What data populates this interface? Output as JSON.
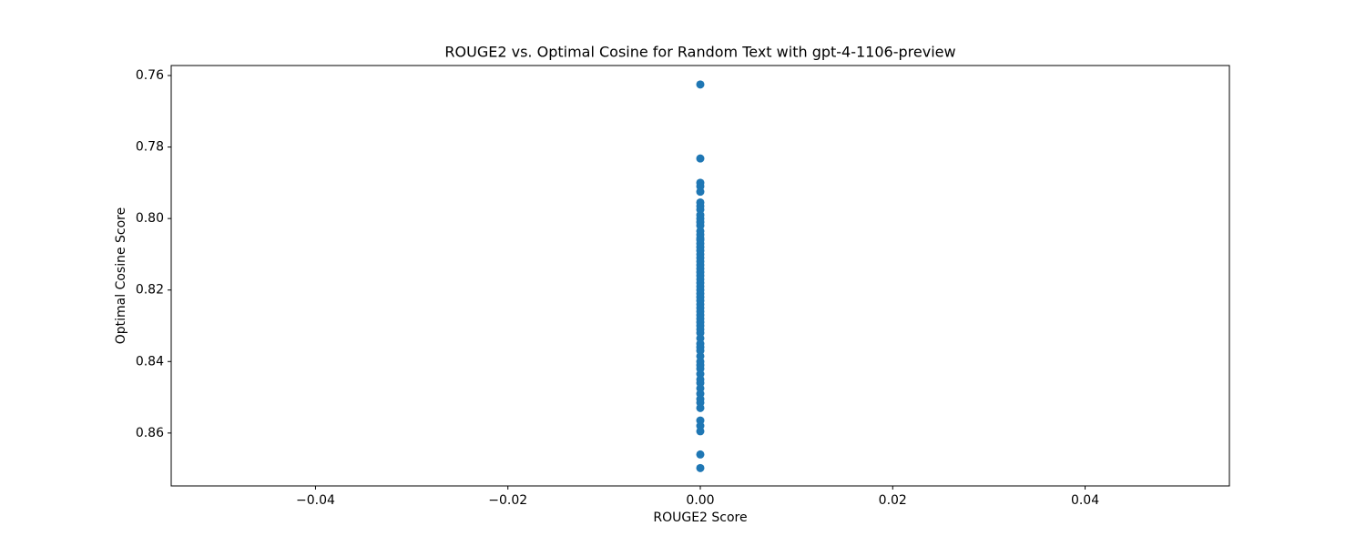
{
  "chart_data": {
    "type": "scatter",
    "title": "ROUGE2 vs. Optimal Cosine for Random Text with gpt-4-1106-preview",
    "x_label": "ROUGE2 Score",
    "y_label": "Optimal Cosine Score",
    "color": "#1f77b4",
    "xlim": [
      -0.055,
      0.055
    ],
    "xticks": [
      {
        "value": -0.04,
        "label": "−0.04"
      },
      {
        "value": -0.02,
        "label": "−0.02"
      },
      {
        "value": 0,
        "label": "0.00"
      },
      0.02,
      0.04
    ],
    "ylim": [
      0.8748,
      0.7572
    ],
    "yticks": [
      0.76,
      0.78,
      {
        "value": 0.8,
        "label": "0.80"
      },
      0.82,
      0.84,
      0.86
    ],
    "x": [
      0,
      0,
      0,
      0,
      0,
      0,
      0,
      0,
      0,
      0,
      0,
      0,
      0,
      0,
      0,
      0,
      0,
      0,
      0,
      0,
      0,
      0,
      0,
      0,
      0,
      0,
      0,
      0,
      0,
      0,
      0,
      0,
      0,
      0,
      0,
      0,
      0,
      0,
      0,
      0,
      0,
      0,
      0,
      0,
      0,
      0,
      0,
      0,
      0,
      0,
      0,
      0,
      0,
      0,
      0,
      0,
      0,
      0,
      0,
      0,
      0,
      0,
      0
    ],
    "values": [
      0.7625,
      0.7832,
      0.79,
      0.791,
      0.7925,
      0.7955,
      0.7965,
      0.7975,
      0.799,
      0.8,
      0.801,
      0.802,
      0.8035,
      0.8045,
      0.8055,
      0.806,
      0.807,
      0.808,
      0.809,
      0.81,
      0.811,
      0.812,
      0.813,
      0.814,
      0.815,
      0.816,
      0.817,
      0.818,
      0.819,
      0.82,
      0.821,
      0.822,
      0.823,
      0.824,
      0.825,
      0.826,
      0.827,
      0.828,
      0.829,
      0.83,
      0.831,
      0.832,
      0.8335,
      0.835,
      0.836,
      0.837,
      0.8385,
      0.84,
      0.841,
      0.842,
      0.8435,
      0.845,
      0.846,
      0.8475,
      0.849,
      0.8505,
      0.8515,
      0.853,
      0.8565,
      0.858,
      0.8595,
      0.866,
      0.8698
    ]
  }
}
